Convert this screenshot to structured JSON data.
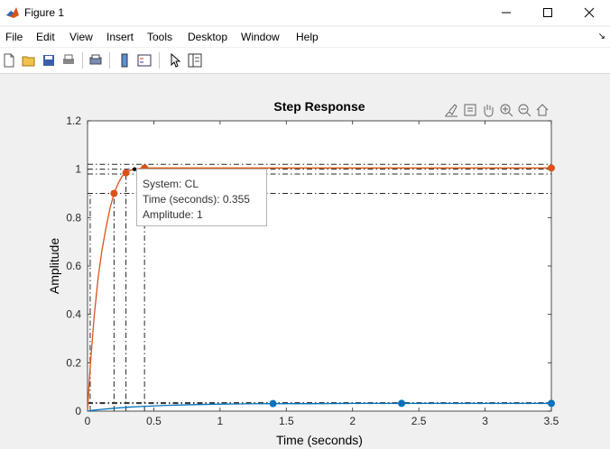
{
  "window": {
    "title": "Figure 1"
  },
  "menu": {
    "items": [
      "File",
      "Edit",
      "View",
      "Insert",
      "Tools",
      "Desktop",
      "Window",
      "Help"
    ]
  },
  "toolbar": {
    "buttons": [
      "new-figure",
      "open-file",
      "save",
      "print",
      "print-preview",
      "link-plot",
      "insert-colorbar",
      "insert-legend",
      "edit-plot",
      "property-editor"
    ]
  },
  "axes_toolbar": {
    "icons": [
      "brush",
      "data-tips",
      "pan",
      "zoom-in",
      "zoom-out",
      "restore-view"
    ]
  },
  "colors": {
    "response": "#d95319",
    "secondary": "#0072bd",
    "grid": "#262626"
  },
  "datatip": {
    "system": "System: CL",
    "time": "Time (seconds): 0.355",
    "amplitude": "Amplitude: 1"
  },
  "chart_data": {
    "type": "line",
    "title": "Step Response",
    "xlabel": "Time (seconds)",
    "ylabel": "Amplitude",
    "xlim": [
      0,
      3.5
    ],
    "ylim": [
      0,
      1.2
    ],
    "xticks": [
      "0",
      "0.5",
      "1",
      "1.5",
      "2",
      "2.5",
      "3",
      "3.5"
    ],
    "yticks": [
      "0",
      "0.2",
      "0.4",
      "0.6",
      "0.8",
      "1",
      "1.2"
    ],
    "grid": false,
    "series": [
      {
        "color": "#d95319",
        "x": [
          0,
          0.02,
          0.05,
          0.08,
          0.11,
          0.14,
          0.17,
          0.2,
          0.23,
          0.26,
          0.29,
          0.32,
          0.36,
          0.42,
          0.6,
          1.0,
          1.5,
          2.0,
          2.5,
          3.0,
          3.5
        ],
        "y": [
          0,
          0.18,
          0.39,
          0.55,
          0.67,
          0.76,
          0.84,
          0.9,
          0.94,
          0.97,
          0.985,
          0.995,
          1.0,
          1.005,
          1.005,
          1.005,
          1.005,
          1.005,
          1.005,
          1.005,
          1.005
        ],
        "markers": [
          {
            "x": 0.2,
            "y": 0.9
          },
          {
            "x": 0.29,
            "y": 0.985
          },
          {
            "x": 0.43,
            "y": 1.005
          },
          {
            "x": 3.5,
            "y": 1.005
          }
        ]
      },
      {
        "color": "#0072bd",
        "x": [
          0,
          0.05,
          0.1,
          0.2,
          0.3,
          0.4,
          0.6,
          0.8,
          1.0,
          1.2,
          1.4,
          1.7,
          2.0,
          2.4,
          3.0,
          3.5
        ],
        "y": [
          0,
          0.004,
          0.007,
          0.012,
          0.016,
          0.019,
          0.024,
          0.027,
          0.029,
          0.03,
          0.031,
          0.031,
          0.032,
          0.032,
          0.032,
          0.032
        ],
        "markers": [
          {
            "x": 1.4,
            "y": 0.031
          },
          {
            "x": 2.37,
            "y": 0.032
          },
          {
            "x": 3.5,
            "y": 0.032
          }
        ]
      }
    ],
    "reference_lines": {
      "horizontal": [
        1.02,
        1.0,
        0.98,
        0.9,
        0.035,
        0.031
      ],
      "vertical": [
        0.02,
        0.2,
        0.29,
        0.43
      ],
      "selected_point": {
        "x": 0.355,
        "y": 1.0
      }
    }
  }
}
